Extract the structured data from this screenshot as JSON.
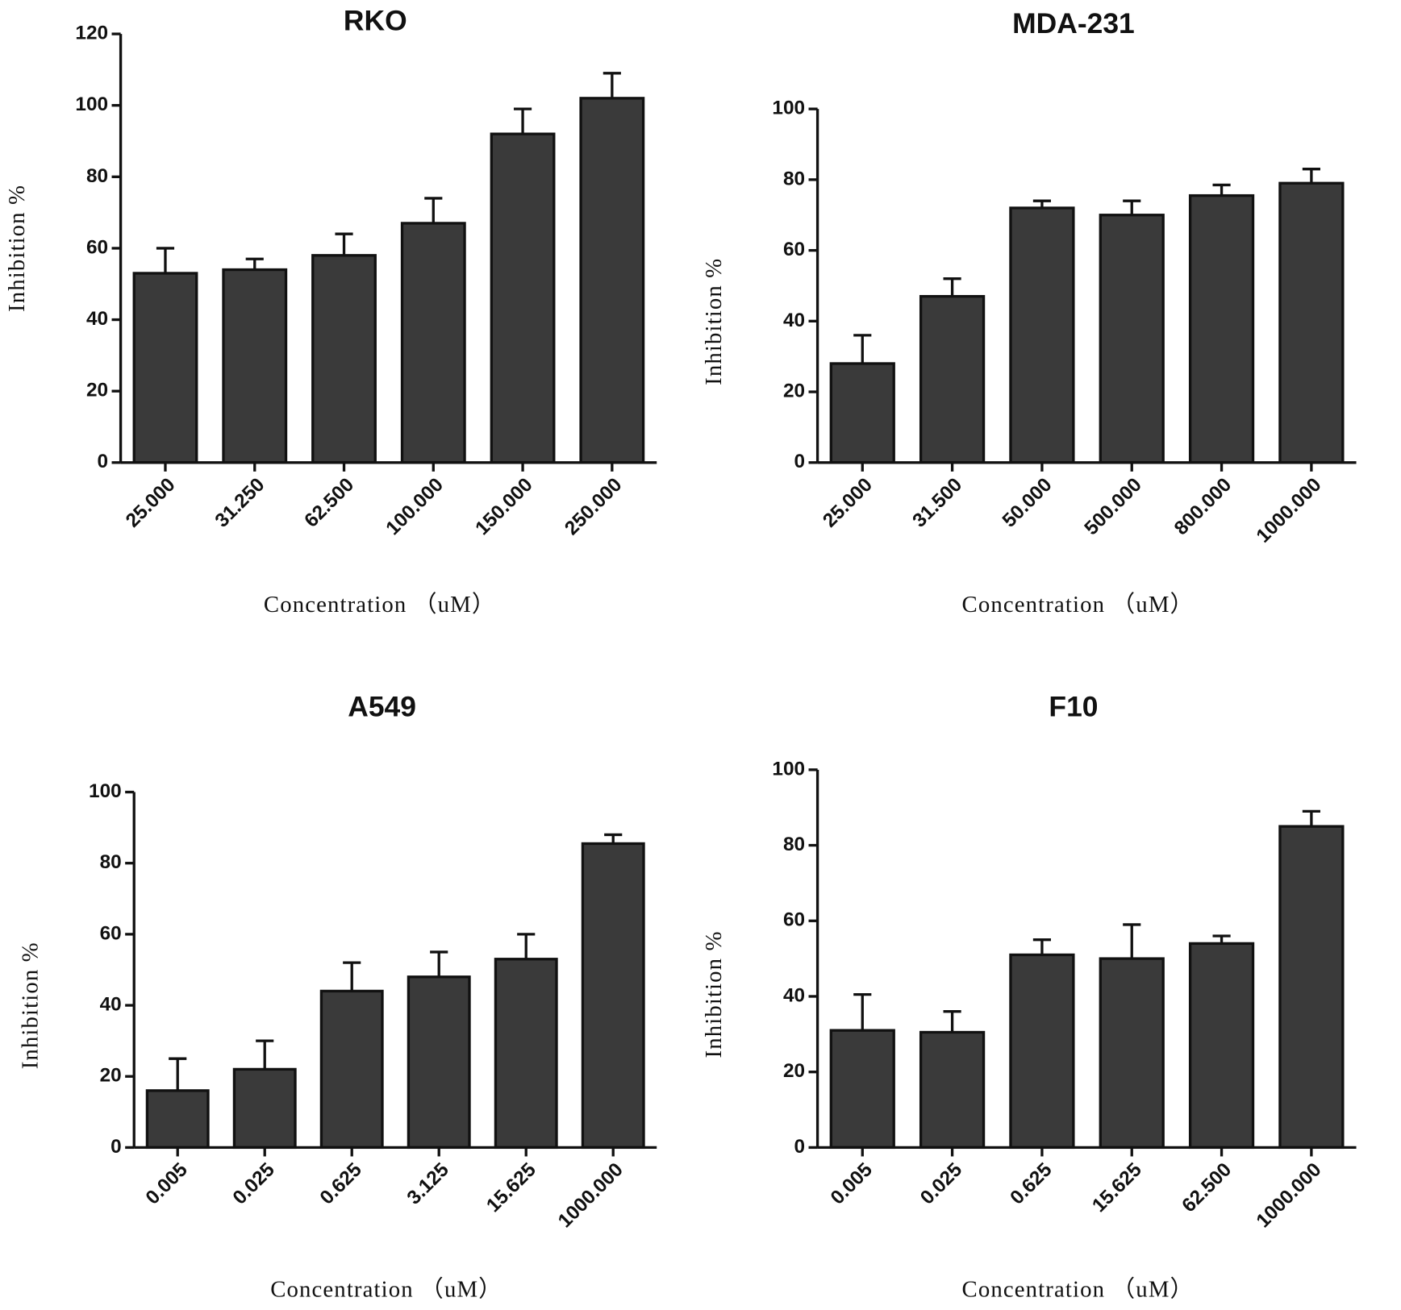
{
  "chart_data": [
    {
      "type": "bar",
      "title": "RKO",
      "x_label": "Concentration （uM）",
      "y_label": "Inhibition %",
      "categories": [
        "25.000",
        "31.250",
        "62.500",
        "100.000",
        "150.000",
        "250.000"
      ],
      "values": [
        53,
        54,
        58,
        67,
        92,
        102
      ],
      "errors": [
        7,
        3,
        6,
        7,
        7,
        7
      ],
      "color": "#3a3a3a",
      "ylim": [
        0,
        120
      ],
      "yticks": [
        0,
        20,
        40,
        60,
        80,
        100,
        120
      ]
    },
    {
      "type": "bar",
      "title": "MDA-231",
      "x_label": "Concentration （uM）",
      "y_label": "Inhibition %",
      "categories": [
        "25.000",
        "31.500",
        "50.000",
        "500.000",
        "800.000",
        "1000.000"
      ],
      "values": [
        28,
        47,
        72,
        70,
        75.5,
        79
      ],
      "errors": [
        8,
        5,
        2,
        4,
        3,
        4
      ],
      "color": "#3a3a3a",
      "ylim": [
        0,
        100
      ],
      "yticks": [
        0,
        20,
        40,
        60,
        80,
        100
      ]
    },
    {
      "type": "bar",
      "title": "A549",
      "x_label": "Concentration （uM）",
      "y_label": "Inhibition %",
      "categories": [
        "0.005",
        "0.025",
        "0.625",
        "3.125",
        "15.625",
        "1000.000"
      ],
      "values": [
        16,
        22,
        44,
        48,
        53,
        85.5
      ],
      "errors": [
        9,
        8,
        8,
        7,
        7,
        2.5
      ],
      "color": "#3a3a3a",
      "ylim": [
        0,
        100
      ],
      "yticks": [
        0,
        20,
        40,
        60,
        80,
        100
      ]
    },
    {
      "type": "bar",
      "title": "F10",
      "x_label": "Concentration （uM）",
      "y_label": "Inhibition %",
      "categories": [
        "0.005",
        "0.025",
        "0.625",
        "15.625",
        "62.500",
        "1000.000"
      ],
      "values": [
        31,
        30.5,
        51,
        50,
        54,
        85
      ],
      "errors": [
        9.5,
        5.5,
        4,
        9,
        2,
        4
      ],
      "color": "#3a3a3a",
      "ylim": [
        0,
        100
      ],
      "yticks": [
        0,
        20,
        40,
        60,
        80,
        100
      ]
    }
  ]
}
